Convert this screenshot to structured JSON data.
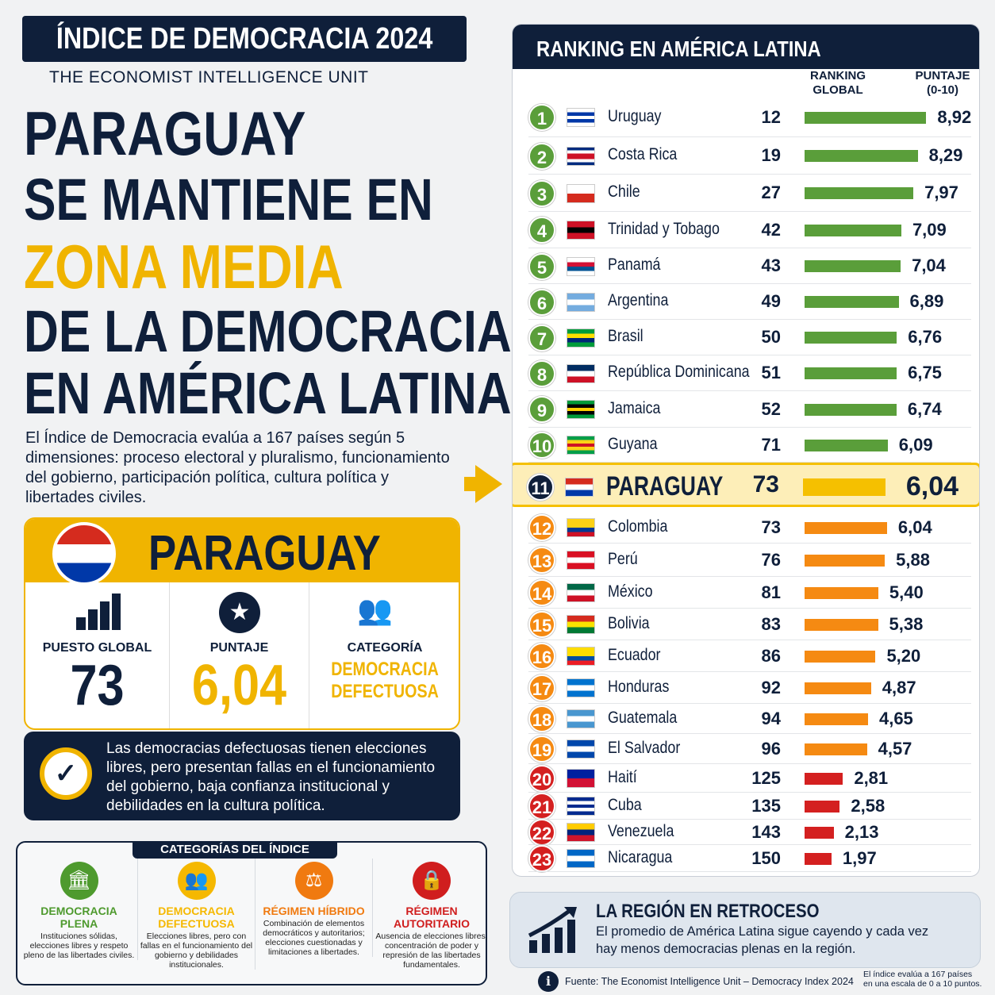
{
  "header": {
    "title": "ÍNDICE DE DEMOCRACIA 2024",
    "subtitle": "THE ECONOMIST INTELLIGENCE UNIT"
  },
  "headline": {
    "line1": "PARAGUAY",
    "line2": "SE MANTIENE EN",
    "line3": "ZONA MEDIA",
    "line4": "DE LA DEMOCRACIA",
    "line5": "EN AMÉRICA LATINA"
  },
  "description": "El Índice de Democracia evalúa a 167 países según 5 dimensiones: proceso electoral y pluralismo, funcionamiento del gobierno, participación política, cultura política y libertades civiles.",
  "card": {
    "country": "PARAGUAY",
    "rank_label": "PUESTO GLOBAL",
    "rank": "73",
    "score_label": "PUNTAJE",
    "score": "6,04",
    "category_label": "CATEGORÍA",
    "category": "DEMOCRACIA DEFECTUOSA"
  },
  "note": "Las democracias defectuosas tienen elecciones libres, pero presentan fallas en el funcionamiento del gobierno, baja confianza institucional y debilidades en la cultura política.",
  "categories": {
    "title": "CATEGORÍAS DEL ÍNDICE",
    "items": [
      {
        "name": "DEMOCRACIA PLENA",
        "desc": "Instituciones sólidas, elecciones libres y respeto pleno de las libertades civiles.",
        "color": "#4e9a2e",
        "icon": "institution-icon"
      },
      {
        "name": "DEMOCRACIA DEFECTUOSA",
        "desc": "Elecciones libres, pero con fallas en el funcionamiento del gobierno y debilidades institucionales.",
        "color": "#f5b800",
        "icon": "people-icon"
      },
      {
        "name": "RÉGIMEN HÍBRIDO",
        "desc": "Combinación de elementos democráticos y autoritarios; elecciones cuestionadas y limitaciones a libertades.",
        "color": "#f07a10",
        "icon": "scales-icon"
      },
      {
        "name": "RÉGIMEN AUTORITARIO",
        "desc": "Ausencia de elecciones libres, concentración de poder y represión de las libertades fundamentales.",
        "color": "#d01e1e",
        "icon": "lock-icon"
      }
    ]
  },
  "panel": {
    "title": "RANKING EN AMÉRICA LATINA",
    "col_rank": "RANKING GLOBAL",
    "col_score": "PUNTAJE (0-10)"
  },
  "colors": {
    "navy": "#0f1f3a",
    "green": "#5a9e3a",
    "yellow": "#f5c000",
    "orange": "#f58a12",
    "red": "#d42020"
  },
  "chart_data": {
    "type": "bar",
    "orientation": "horizontal",
    "xlim": [
      0,
      10
    ],
    "rows": [
      {
        "pos": "1",
        "country": "Uruguay",
        "global": "12",
        "score": 8.92,
        "label": "8,92",
        "tier": "green",
        "flag": [
          "#fff",
          "#0038a8",
          "#fff",
          "#0038a8",
          "#fff"
        ]
      },
      {
        "pos": "2",
        "country": "Costa Rica",
        "global": "19",
        "score": 8.29,
        "label": "8,29",
        "tier": "green",
        "flag": [
          "#002b7f",
          "#fff",
          "#ce1126",
          "#ce1126",
          "#fff",
          "#002b7f"
        ]
      },
      {
        "pos": "3",
        "country": "Chile",
        "global": "27",
        "score": 7.97,
        "label": "7,97",
        "tier": "green",
        "flag": [
          "#fff",
          "#d52b1e"
        ]
      },
      {
        "pos": "4",
        "country": "Trinidad y Tobago",
        "global": "42",
        "score": 7.09,
        "label": "7,09",
        "tier": "green",
        "flag": [
          "#ce1126",
          "#000",
          "#ce1126"
        ]
      },
      {
        "pos": "5",
        "country": "Panamá",
        "global": "43",
        "score": 7.04,
        "label": "7,04",
        "tier": "green",
        "flag": [
          "#fff",
          "#d21034",
          "#005293",
          "#fff"
        ]
      },
      {
        "pos": "6",
        "country": "Argentina",
        "global": "49",
        "score": 6.89,
        "label": "6,89",
        "tier": "green",
        "flag": [
          "#74acdf",
          "#fff",
          "#74acdf"
        ]
      },
      {
        "pos": "7",
        "country": "Brasil",
        "global": "50",
        "score": 6.76,
        "label": "6,76",
        "tier": "green",
        "flag": [
          "#009c3b",
          "#ffdf00",
          "#002776",
          "#009c3b"
        ]
      },
      {
        "pos": "8",
        "country": "República Dominicana",
        "global": "51",
        "score": 6.75,
        "label": "6,75",
        "tier": "green",
        "flag": [
          "#002d62",
          "#fff",
          "#ce1126"
        ]
      },
      {
        "pos": "9",
        "country": "Jamaica",
        "global": "52",
        "score": 6.74,
        "label": "6,74",
        "tier": "green",
        "flag": [
          "#009b3a",
          "#000",
          "#fed100",
          "#000",
          "#009b3a"
        ]
      },
      {
        "pos": "10",
        "country": "Guyana",
        "global": "71",
        "score": 6.09,
        "label": "6,09",
        "tier": "green",
        "flag": [
          "#009e49",
          "#fcd116",
          "#ce1126",
          "#fcd116",
          "#009e49"
        ]
      },
      {
        "pos": "11",
        "country": "PARAGUAY",
        "global": "73",
        "score": 6.04,
        "label": "6,04",
        "tier": "highlight",
        "flag": [
          "#d52b1e",
          "#fff",
          "#0038a8"
        ]
      },
      {
        "pos": "12",
        "country": "Colombia",
        "global": "73",
        "score": 6.04,
        "label": "6,04",
        "tier": "orange",
        "flag": [
          "#fcd116",
          "#fcd116",
          "#003893",
          "#ce1126"
        ]
      },
      {
        "pos": "13",
        "country": "Perú",
        "global": "76",
        "score": 5.88,
        "label": "5,88",
        "tier": "orange",
        "flag": [
          "#d91023",
          "#fff",
          "#d91023"
        ]
      },
      {
        "pos": "14",
        "country": "México",
        "global": "81",
        "score": 5.4,
        "label": "5,40",
        "tier": "orange",
        "flag": [
          "#006847",
          "#fff",
          "#ce1126"
        ]
      },
      {
        "pos": "15",
        "country": "Bolivia",
        "global": "83",
        "score": 5.38,
        "label": "5,38",
        "tier": "orange",
        "flag": [
          "#d52b1e",
          "#f9e300",
          "#007934"
        ]
      },
      {
        "pos": "16",
        "country": "Ecuador",
        "global": "86",
        "score": 5.2,
        "label": "5,20",
        "tier": "orange",
        "flag": [
          "#ffdd00",
          "#ffdd00",
          "#034ea2",
          "#ed1c24"
        ]
      },
      {
        "pos": "17",
        "country": "Honduras",
        "global": "92",
        "score": 4.87,
        "label": "4,87",
        "tier": "orange",
        "flag": [
          "#0073cf",
          "#fff",
          "#0073cf"
        ]
      },
      {
        "pos": "18",
        "country": "Guatemala",
        "global": "94",
        "score": 4.65,
        "label": "4,65",
        "tier": "orange",
        "flag": [
          "#4997d0",
          "#fff",
          "#4997d0"
        ]
      },
      {
        "pos": "19",
        "country": "El Salvador",
        "global": "96",
        "score": 4.57,
        "label": "4,57",
        "tier": "orange",
        "flag": [
          "#0047ab",
          "#fff",
          "#0047ab"
        ]
      },
      {
        "pos": "20",
        "country": "Haití",
        "global": "125",
        "score": 2.81,
        "label": "2,81",
        "tier": "red",
        "flag": [
          "#00209f",
          "#d21034"
        ]
      },
      {
        "pos": "21",
        "country": "Cuba",
        "global": "135",
        "score": 2.58,
        "label": "2,58",
        "tier": "red",
        "flag": [
          "#002a8f",
          "#fff",
          "#002a8f",
          "#fff",
          "#002a8f"
        ]
      },
      {
        "pos": "22",
        "country": "Venezuela",
        "global": "143",
        "score": 2.13,
        "label": "2,13",
        "tier": "red",
        "flag": [
          "#ffcc00",
          "#00247d",
          "#cf142b"
        ]
      },
      {
        "pos": "23",
        "country": "Nicaragua",
        "global": "150",
        "score": 1.97,
        "label": "1,97",
        "tier": "red",
        "flag": [
          "#0067c6",
          "#fff",
          "#0067c6"
        ]
      }
    ]
  },
  "retro": {
    "title": "LA REGIÓN EN RETROCESO",
    "text": "El promedio de América Latina sigue cayendo y cada vez hay menos democracias plenas en la región."
  },
  "footer": {
    "source": "Fuente: The Economist Intelligence Unit – Democracy Index 2024",
    "scale_note": "El índice evalúa a 167 países en una escala de 0 a 10 puntos."
  }
}
